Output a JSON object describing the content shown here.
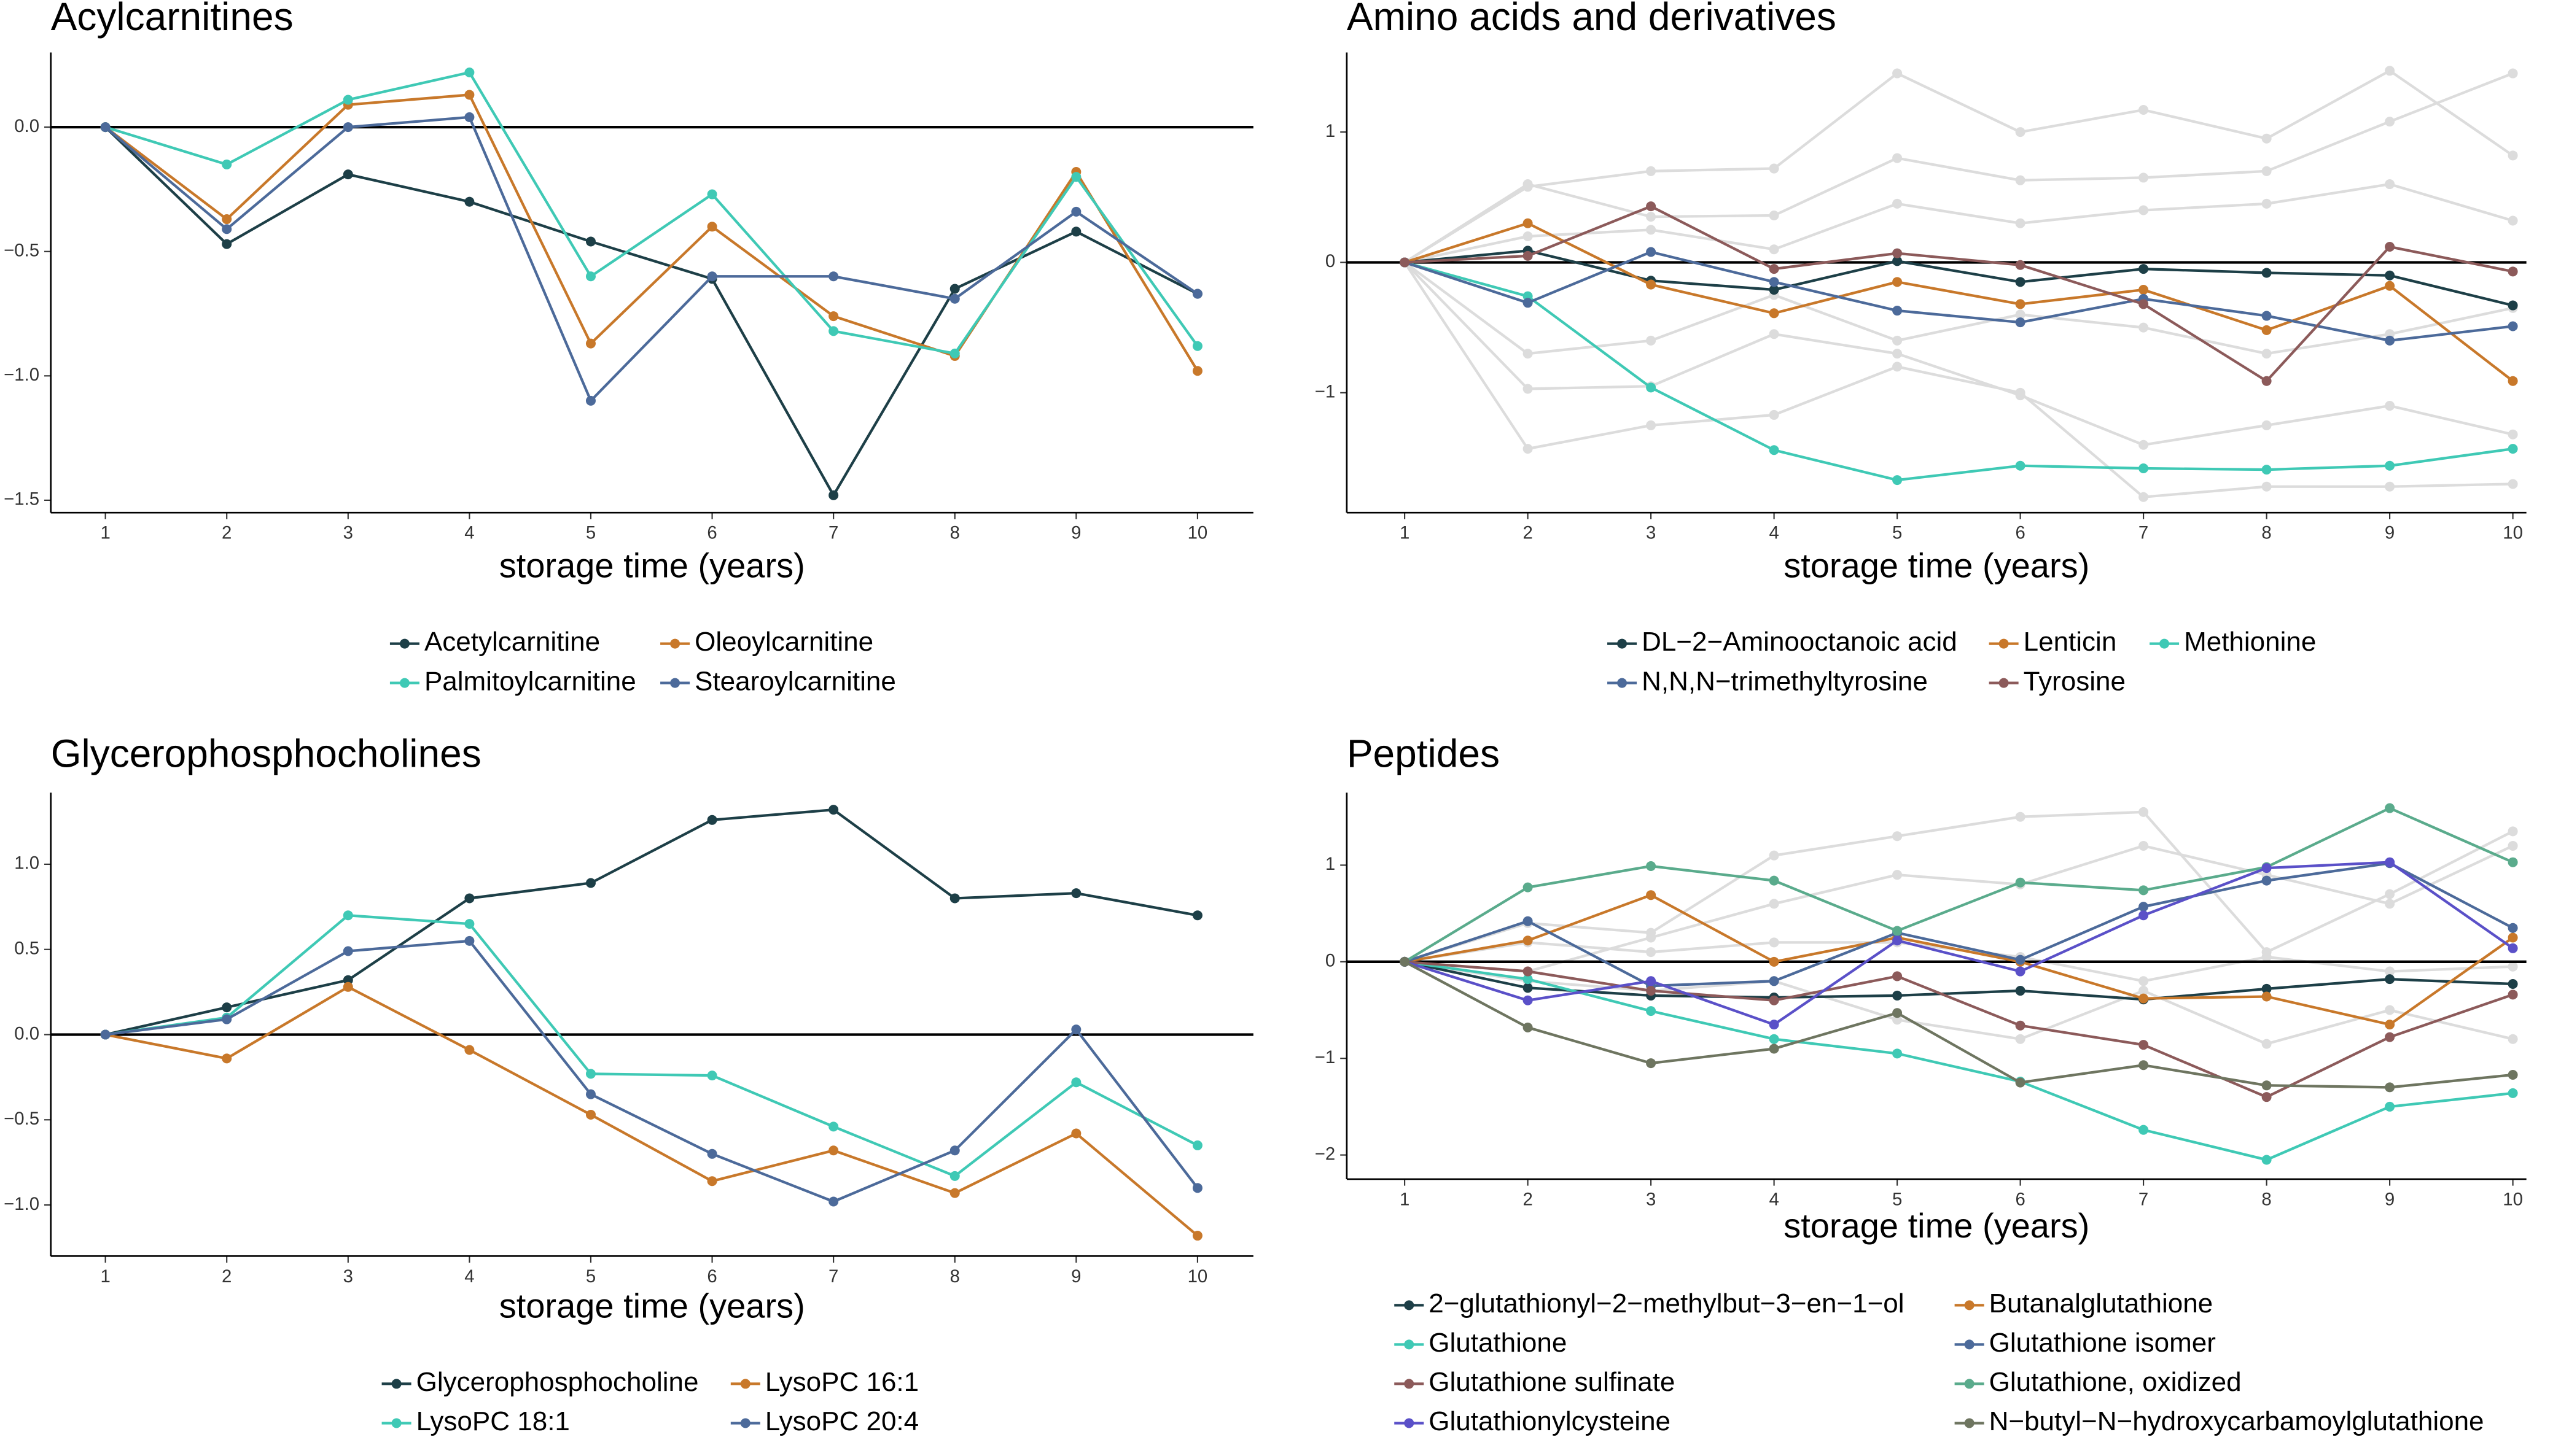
{
  "chart_data": [
    {
      "type": "line",
      "title": "Acylcarnitines",
      "x_label": "storage time (years)",
      "x": [
        1,
        2,
        3,
        4,
        5,
        6,
        7,
        8,
        9,
        10
      ],
      "xlim": [
        0.55,
        10.46
      ],
      "xticks": [
        1,
        2,
        3,
        4,
        5,
        6,
        7,
        8,
        9,
        10
      ],
      "ylim": [
        -1.55,
        0.3
      ],
      "yticks": [
        {
          "value": 0,
          "label": "0.0"
        },
        {
          "value": -0.5,
          "label": "−0.5"
        },
        {
          "value": -1,
          "label": "−1.0"
        },
        {
          "value": -1.5,
          "label": "−1.5"
        }
      ],
      "zero_line": true,
      "series": [
        {
          "name": "Acetylcarnitine",
          "color": "#1d3f47",
          "values": [
            0,
            -0.47,
            -0.19,
            -0.3,
            -0.46,
            -0.61,
            -1.48,
            -0.65,
            -0.42,
            -0.67
          ]
        },
        {
          "name": "Oleoylcarnitine",
          "color": "#c8782a",
          "values": [
            0,
            -0.37,
            0.09,
            0.13,
            -0.87,
            -0.4,
            -0.76,
            -0.92,
            -0.18,
            -0.98
          ]
        },
        {
          "name": "Palmitoylcarnitine",
          "color": "#3fc9b5",
          "values": [
            0,
            -0.15,
            0.11,
            0.22,
            -0.6,
            -0.27,
            -0.82,
            -0.91,
            -0.2,
            -0.88
          ]
        },
        {
          "name": "Stearoylcarnitine",
          "color": "#4c6a9a",
          "values": [
            0,
            -0.41,
            0.0,
            0.04,
            -1.1,
            -0.6,
            -0.6,
            -0.69,
            -0.34,
            -0.67
          ]
        }
      ]
    },
    {
      "type": "line",
      "title": "Amino acids and derivatives",
      "x_label": "storage time (years)",
      "x": [
        1,
        2,
        3,
        4,
        5,
        6,
        7,
        8,
        9,
        10
      ],
      "xlim": [
        0.53,
        10.11
      ],
      "xticks": [
        1,
        2,
        3,
        4,
        5,
        6,
        7,
        8,
        9,
        10
      ],
      "ylim": [
        -1.92,
        1.61
      ],
      "yticks": [
        {
          "value": 1,
          "label": "1"
        },
        {
          "value": 0,
          "label": "0"
        },
        {
          "value": -1,
          "label": "−1"
        }
      ],
      "zero_line": true,
      "background_color": "#dcdcdc",
      "background_values": [
        [
          0,
          0.58,
          0.7,
          0.72,
          1.45,
          1.0,
          1.17,
          0.95,
          1.47,
          0.82
        ],
        [
          0,
          -1.43,
          -1.25,
          -1.17,
          -0.8,
          -1.0,
          -1.8,
          -1.72,
          -1.72,
          -1.7
        ],
        [
          0,
          0.6,
          0.35,
          0.36,
          0.8,
          0.63,
          0.65,
          0.7,
          1.08,
          1.45
        ],
        [
          0,
          -0.97,
          -0.95,
          -0.55,
          -0.7,
          -1.02,
          -1.4,
          -1.25,
          -1.1,
          -1.32
        ],
        [
          0,
          -0.7,
          -0.6,
          -0.25,
          -0.6,
          -0.4,
          -0.5,
          -0.7,
          -0.55,
          -0.35
        ],
        [
          0,
          0.2,
          0.25,
          0.1,
          0.45,
          0.3,
          0.4,
          0.45,
          0.6,
          0.32
        ]
      ],
      "series": [
        {
          "name": "DL−2−Aminooctanoic acid",
          "color": "#1d3f47",
          "values": [
            0,
            0.09,
            -0.14,
            -0.21,
            0.01,
            -0.15,
            -0.05,
            -0.08,
            -0.1,
            -0.33
          ]
        },
        {
          "name": "Lenticin",
          "color": "#c8782a",
          "values": [
            0,
            0.3,
            -0.17,
            -0.39,
            -0.15,
            -0.32,
            -0.21,
            -0.52,
            -0.18,
            -0.91
          ]
        },
        {
          "name": "Methionine",
          "color": "#3fc9b5",
          "values": [
            0,
            -0.26,
            -0.96,
            -1.44,
            -1.67,
            -1.56,
            -1.58,
            -1.59,
            -1.56,
            -1.43
          ]
        },
        {
          "name": "N,N,N−trimethyltyrosine",
          "color": "#4c6a9a",
          "values": [
            0,
            -0.31,
            0.08,
            -0.15,
            -0.37,
            -0.46,
            -0.28,
            -0.41,
            -0.6,
            -0.49
          ]
        },
        {
          "name": "Tyrosine",
          "color": "#8c5a5a",
          "values": [
            0,
            0.05,
            0.43,
            -0.05,
            0.07,
            -0.02,
            -0.32,
            -0.91,
            0.12,
            -0.07
          ]
        }
      ]
    },
    {
      "type": "line",
      "title": "Glycerophosphocholines",
      "x_label": "storage time (years)",
      "x": [
        1,
        2,
        3,
        4,
        5,
        6,
        7,
        8,
        9,
        10
      ],
      "xlim": [
        0.55,
        10.46
      ],
      "xticks": [
        1,
        2,
        3,
        4,
        5,
        6,
        7,
        8,
        9,
        10
      ],
      "ylim": [
        -1.3,
        1.42
      ],
      "yticks": [
        {
          "value": 1,
          "label": "1.0"
        },
        {
          "value": 0.5,
          "label": "0.5"
        },
        {
          "value": 0,
          "label": "0.0"
        },
        {
          "value": -0.5,
          "label": "−0.5"
        },
        {
          "value": -1,
          "label": "−1.0"
        }
      ],
      "zero_line": true,
      "series": [
        {
          "name": "Glycerophosphocholine",
          "color": "#1d3f47",
          "values": [
            0,
            0.16,
            0.32,
            0.8,
            0.89,
            1.26,
            1.32,
            0.8,
            0.83,
            0.7
          ]
        },
        {
          "name": "LysoPC 16:1",
          "color": "#c8782a",
          "values": [
            0,
            -0.14,
            0.28,
            -0.09,
            -0.47,
            -0.86,
            -0.68,
            -0.93,
            -0.58,
            -1.18
          ]
        },
        {
          "name": "LysoPC 18:1",
          "color": "#3fc9b5",
          "values": [
            0,
            0.1,
            0.7,
            0.65,
            -0.23,
            -0.24,
            -0.54,
            -0.83,
            -0.28,
            -0.65
          ]
        },
        {
          "name": "LysoPC 20:4",
          "color": "#4c6a9a",
          "values": [
            0,
            0.09,
            0.49,
            0.55,
            -0.35,
            -0.7,
            -0.98,
            -0.68,
            0.03,
            -0.9
          ]
        }
      ]
    },
    {
      "type": "line",
      "title": "Peptides",
      "x_label": "storage time (years)",
      "x": [
        1,
        2,
        3,
        4,
        5,
        6,
        7,
        8,
        9,
        10
      ],
      "xlim": [
        0.53,
        10.11
      ],
      "xticks": [
        1,
        2,
        3,
        4,
        5,
        6,
        7,
        8,
        9,
        10
      ],
      "ylim": [
        -2.25,
        1.75
      ],
      "yticks": [
        {
          "value": 1,
          "label": "1"
        },
        {
          "value": 0,
          "label": "0"
        },
        {
          "value": -1,
          "label": "−1"
        },
        {
          "value": -2,
          "label": "−2"
        }
      ],
      "zero_line": true,
      "background_color": "#dcdcdc",
      "background_values": [
        [
          0,
          0.4,
          0.3,
          1.1,
          1.3,
          1.5,
          1.55,
          0.1,
          0.7,
          1.35
        ],
        [
          0,
          -0.1,
          0.25,
          0.6,
          0.9,
          0.8,
          1.2,
          0.9,
          0.6,
          1.2
        ],
        [
          0,
          -0.2,
          -0.3,
          -0.2,
          -0.6,
          -0.8,
          -0.3,
          -0.85,
          -0.5,
          -0.8
        ],
        [
          0,
          0.2,
          0.1,
          0.2,
          0.2,
          0.05,
          -0.2,
          0.05,
          -0.1,
          -0.05
        ]
      ],
      "series": [
        {
          "name": "2−glutathionyl−2−methylbut−3−en−1−ol",
          "color": "#1d3f47",
          "values": [
            0,
            -0.27,
            -0.35,
            -0.37,
            -0.35,
            -0.3,
            -0.39,
            -0.28,
            -0.18,
            -0.23
          ]
        },
        {
          "name": "Butanalglutathione",
          "color": "#c8782a",
          "values": [
            0,
            0.22,
            0.69,
            0.0,
            0.25,
            0.0,
            -0.38,
            -0.36,
            -0.65,
            0.25
          ]
        },
        {
          "name": "Glutathione",
          "color": "#3fc9b5",
          "values": [
            0,
            -0.18,
            -0.51,
            -0.8,
            -0.95,
            -1.24,
            -1.74,
            -2.05,
            -1.5,
            -1.36
          ]
        },
        {
          "name": "Glutathione isomer",
          "color": "#4c6a9a",
          "values": [
            0,
            0.42,
            -0.25,
            -0.2,
            0.3,
            0.02,
            0.57,
            0.84,
            1.02,
            0.35
          ]
        },
        {
          "name": "Glutathione sulfinate",
          "color": "#8c5a5a",
          "values": [
            0,
            -0.1,
            -0.3,
            -0.4,
            -0.15,
            -0.66,
            -0.86,
            -1.4,
            -0.78,
            -0.34
          ]
        },
        {
          "name": "Glutathione, oxidized",
          "color": "#5aab8c",
          "values": [
            0,
            0.77,
            0.99,
            0.84,
            0.32,
            0.82,
            0.74,
            0.98,
            1.59,
            1.03
          ]
        },
        {
          "name": "Glutathionylcysteine",
          "color": "#5a50c8",
          "values": [
            0,
            -0.4,
            -0.2,
            -0.65,
            0.22,
            -0.1,
            0.48,
            0.97,
            1.03,
            0.14
          ]
        },
        {
          "name": "N−butyl−N−hydroxycarbamoylglutathione",
          "color": "#6e7560",
          "values": [
            0,
            -0.68,
            -1.05,
            -0.9,
            -0.53,
            -1.25,
            -1.07,
            -1.28,
            -1.3,
            -1.17
          ]
        }
      ]
    }
  ]
}
